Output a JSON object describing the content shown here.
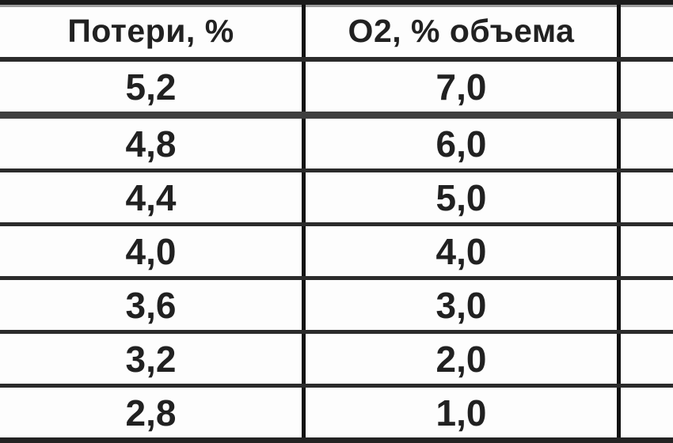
{
  "table": {
    "headers": [
      {
        "label": "Потери, %"
      },
      {
        "label": "О2, % объема"
      },
      {
        "label": ""
      }
    ],
    "rows": [
      [
        "5,2",
        "7,0",
        ""
      ],
      [
        "4,8",
        "6,0",
        ""
      ],
      [
        "4,4",
        "5,0",
        ""
      ],
      [
        "4,0",
        "4,0",
        ""
      ],
      [
        "3,6",
        "3,0",
        ""
      ],
      [
        "3,2",
        "2,0",
        ""
      ],
      [
        "2,8",
        "1,0",
        ""
      ]
    ]
  },
  "colors": {
    "grid_dark": "#1b1b1b",
    "grid_gray": "#3f3f3f",
    "text": "#212121",
    "background": "#ffffff"
  },
  "chart_data": {
    "type": "table",
    "columns": [
      "Потери, %",
      "О2, % объема",
      ""
    ],
    "rows": [
      [
        5.2,
        7.0,
        null
      ],
      [
        4.8,
        6.0,
        null
      ],
      [
        4.4,
        5.0,
        null
      ],
      [
        4.0,
        4.0,
        null
      ],
      [
        3.6,
        3.0,
        null
      ],
      [
        3.2,
        2.0,
        null
      ],
      [
        2.8,
        1.0,
        null
      ]
    ]
  }
}
